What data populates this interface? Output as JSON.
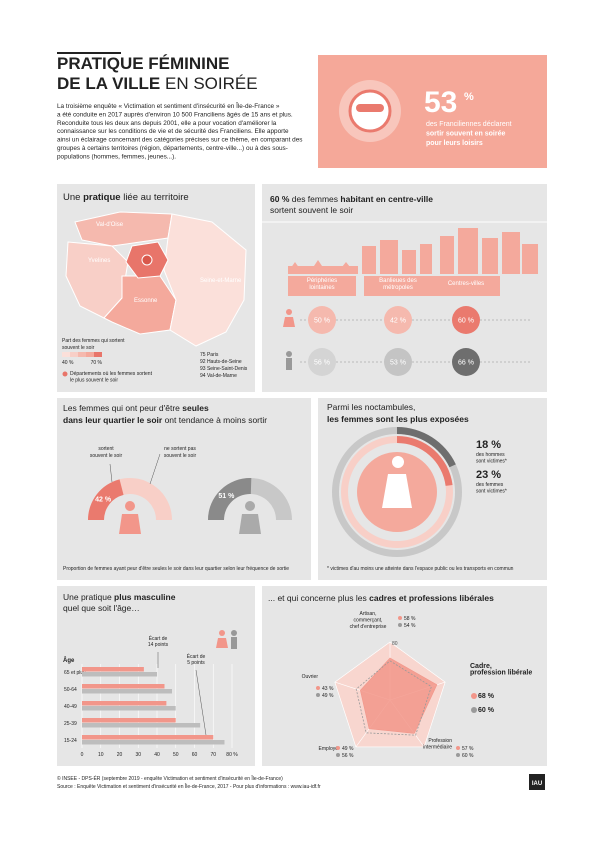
{
  "header": {
    "title1": [
      {
        "text": "PRATIQUE FÉMININE",
        "bold": true
      }
    ],
    "title2": [
      {
        "text": "DE LA VILLE",
        "bold": true
      },
      {
        "text": " EN SOIRÉE",
        "bold": false
      }
    ],
    "intro": [
      "La troisième enquête « Victimation et sentiment d'insécurité en Île-de-France »",
      "a été conduite en 2017 auprès d'environ 10 500 Franciliens âgés de 15 ans et plus.",
      "Reconduite tous les deux ans depuis 2001, elle a pour vocation d'améliorer la",
      "connaissance sur les conditions de vie et de sécurité des Franciliens. Elle apporte",
      "ainsi un éclairage concernant des catégories précises sur ce thème, en comparant des",
      "groupes à certains territoires (région, départements, centre-ville...) ou à des sous-",
      "populations (hommes, femmes, jeunes...)."
    ]
  },
  "highlight": {
    "value": "53",
    "unit": "%",
    "lines": [
      {
        "text": "des Franciliennes déclarent",
        "bold": false
      },
      {
        "text": "sortir souvent en soirée",
        "bold": true
      },
      {
        "text": "pour leurs loisirs",
        "bold": true
      }
    ]
  },
  "territory": {
    "title": [
      {
        "text": "Une ",
        "bold": false
      },
      {
        "text": "pratique",
        "bold": true
      },
      {
        "text": " liée au territoire",
        "bold": false
      }
    ],
    "departments": [
      "Val-d'Oise",
      "Yvelines",
      "Essonne",
      "Seine-et-Marne"
    ],
    "petite_couronne": [
      "75 Paris",
      "92 Hauts-de-Seine",
      "93 Seine-Saint-Denis",
      "94 Val-de-Marne"
    ],
    "legend_title": [
      "Part des femmes qui sortent",
      "souvent le soir"
    ],
    "legend_min": "40 %",
    "legend_max": "70 %",
    "legend_colors": [
      "#fbe0da",
      "#f8cfc7",
      "#f5b9ae",
      "#f4a99c",
      "#e8756a"
    ],
    "legend_note": [
      "Départements où les femmes sortent",
      "le plus souvent le soir"
    ]
  },
  "residence": {
    "title1": [
      {
        "text": "60 %",
        "bold": true
      },
      {
        "text": " des femmes ",
        "bold": false
      },
      {
        "text": "habitant en centre-ville",
        "bold": true
      }
    ],
    "title2": [
      {
        "text": "sortent souvent le soir",
        "bold": false
      }
    ],
    "columns": [
      [
        "Périphéries",
        "lointaines"
      ],
      [
        "Banlieues des",
        "métropoles"
      ],
      [
        "Centres-villes"
      ]
    ],
    "women": [
      "50 %",
      "42 %",
      "60 %"
    ],
    "men": [
      "56 %",
      "53 %",
      "66 %"
    ],
    "women_colors": [
      "#f5b9ae",
      "#f5b9ae",
      "#ea7a6e"
    ],
    "men_colors": [
      "#d4d4d4",
      "#c4c4c4",
      "#6e6e6e"
    ]
  },
  "fear": {
    "title1": [
      {
        "text": "Les femmes qui ont peur d'être ",
        "bold": false
      },
      {
        "text": "seules",
        "bold": true
      }
    ],
    "title2": [
      {
        "text": "dans leur quartier le soir",
        "bold": true
      },
      {
        "text": " ont tendance à moins sortir",
        "bold": false
      }
    ],
    "label_left": [
      "sortent",
      "souvent le soir"
    ],
    "label_right": [
      "ne sortent pas",
      "souvent le soir"
    ],
    "lim": [
      0,
      100
    ],
    "values": [
      42,
      51
    ],
    "value_labels": [
      "42 %",
      "51 %"
    ],
    "colors": [
      [
        "#f8cfc7",
        "#ea7a6e"
      ],
      [
        "#c8c8c8",
        "#8a8a8a"
      ]
    ],
    "note": "Proportion de femmes ayant peur d'être seules le soir dans leur quartier selon leur fréquence de sortie"
  },
  "victims": {
    "title1": [
      {
        "text": "Parmi les noctambules,",
        "bold": false
      }
    ],
    "title2": [
      {
        "text": "les femmes sont les plus exposées",
        "bold": true
      }
    ],
    "lim": [
      0,
      100
    ],
    "values": [
      18,
      23
    ],
    "value_labels": [
      "18 %",
      "23 %"
    ],
    "descriptions": [
      [
        "des hommes",
        "sont victimes*"
      ],
      [
        "des femmes",
        "sont victimes*"
      ]
    ],
    "colors": [
      [
        "#c8c8c8",
        "#6e6e6e"
      ],
      [
        "#f8cfc7",
        "#ea7a6e"
      ]
    ],
    "note": "* victimes d'au moins une atteinte dans l'espace public ou les transports en commun"
  },
  "age_chart": {
    "title1": [
      {
        "text": "Une pratique ",
        "bold": false
      },
      {
        "text": "plus masculine",
        "bold": true
      }
    ],
    "title2": [
      {
        "text": "quel que soit l'âge…",
        "bold": false
      }
    ],
    "axis_label": "Âge",
    "categories": [
      "65 et plus",
      "50-64",
      "40-49",
      "25-39",
      "15-24"
    ],
    "series": [
      {
        "color": "#f2968a",
        "values": [
          33,
          44,
          45,
          50,
          70
        ]
      },
      {
        "color": "#bdbdbd",
        "values": [
          40,
          48,
          50,
          63,
          76
        ]
      }
    ],
    "xlim": [
      0,
      80
    ],
    "xticks": [
      0,
      10,
      20,
      30,
      40,
      50,
      60,
      70,
      {
        "value": 80,
        "label": "80 %"
      }
    ],
    "annotations": [
      [
        "Écart de",
        "14 points"
      ],
      [
        "Écart de",
        "5 points"
      ]
    ]
  },
  "profession_chart": {
    "title": [
      {
        "text": "... et qui concerne plus les ",
        "bold": false
      },
      {
        "text": "cadres et professions libérales",
        "bold": true
      }
    ],
    "categories": [
      [
        "Artisan,",
        "commerçant,",
        "chef d'entreprise"
      ],
      [
        "Cadre,",
        "profession libérale"
      ],
      [
        "Profession",
        "intermédiaire"
      ],
      [
        "Employé"
      ],
      [
        "Ouvrier"
      ]
    ],
    "series": [
      {
        "color": "#f2968a",
        "values": [
          58,
          68,
          57,
          49,
          43
        ],
        "value_labels": [
          "58 %",
          "68 %",
          "57 %",
          "49 %",
          "43 %"
        ]
      },
      {
        "color": "#9a9a9a",
        "values": [
          54,
          60,
          60,
          56,
          49
        ],
        "value_labels": [
          "54 %",
          "60 %",
          "60 %",
          "56 %",
          "49 %"
        ]
      }
    ],
    "rlim": [
      0,
      80
    ],
    "rticks": [
      20,
      40,
      60,
      80
    ]
  },
  "footer": {
    "credit": "© INSEE - DPS-ÉR (septembre 2019 - enquête Victimation et sentiment d'insécurité en Île-de-France)",
    "source": "Source : Enquête Victimation et sentiment d'insécurité en Île-de-France, 2017 - Pour plus d'informations : www.iau-idf.fr",
    "logo": "IAU"
  }
}
